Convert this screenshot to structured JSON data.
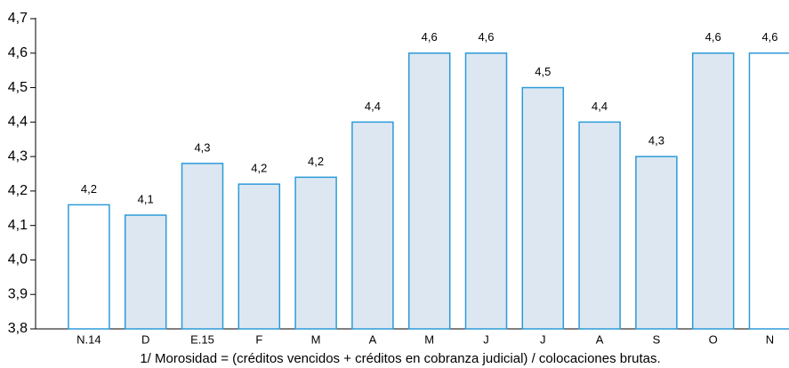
{
  "chart_data": {
    "type": "bar",
    "categories": [
      "N.14",
      "D",
      "E.15",
      "F",
      "M",
      "A",
      "M",
      "J",
      "J",
      "A",
      "S",
      "O",
      "N"
    ],
    "values": [
      4.16,
      4.13,
      4.28,
      4.22,
      4.24,
      4.4,
      4.6,
      4.6,
      4.5,
      4.4,
      4.3,
      4.6,
      4.6
    ],
    "value_labels": [
      "4,2",
      "4,1",
      "4,3",
      "4,2",
      "4,2",
      "4,4",
      "4,6",
      "4,6",
      "4,5",
      "4,4",
      "4,3",
      "4,6",
      "4,6"
    ],
    "colors": [
      "#ffffff",
      "#dde7f2",
      "#dde7f2",
      "#dde7f2",
      "#dde7f2",
      "#dde7f2",
      "#dde7f2",
      "#dde7f2",
      "#dde7f2",
      "#dde7f2",
      "#dde7f2",
      "#dde7f2",
      "#ffffff"
    ],
    "edge_color": "#2b9bd8",
    "ylim": [
      3.8,
      4.7
    ],
    "yticks": [
      {
        "value": 3.8,
        "label": "3,8"
      },
      {
        "value": 3.9,
        "label": "3,9"
      },
      {
        "value": 4.0,
        "label": "4,0"
      },
      {
        "value": 4.1,
        "label": "4,1"
      },
      {
        "value": 4.2,
        "label": "4,2"
      },
      {
        "value": 4.3,
        "label": "4,3"
      },
      {
        "value": 4.4,
        "label": "4,4"
      },
      {
        "value": 4.5,
        "label": "4,5"
      },
      {
        "value": 4.6,
        "label": "4,6"
      },
      {
        "value": 4.7,
        "label": "4,7"
      }
    ],
    "footnote": "1/ Morosidad = (créditos vencidos + créditos en cobranza judicial) / colocaciones brutas."
  }
}
